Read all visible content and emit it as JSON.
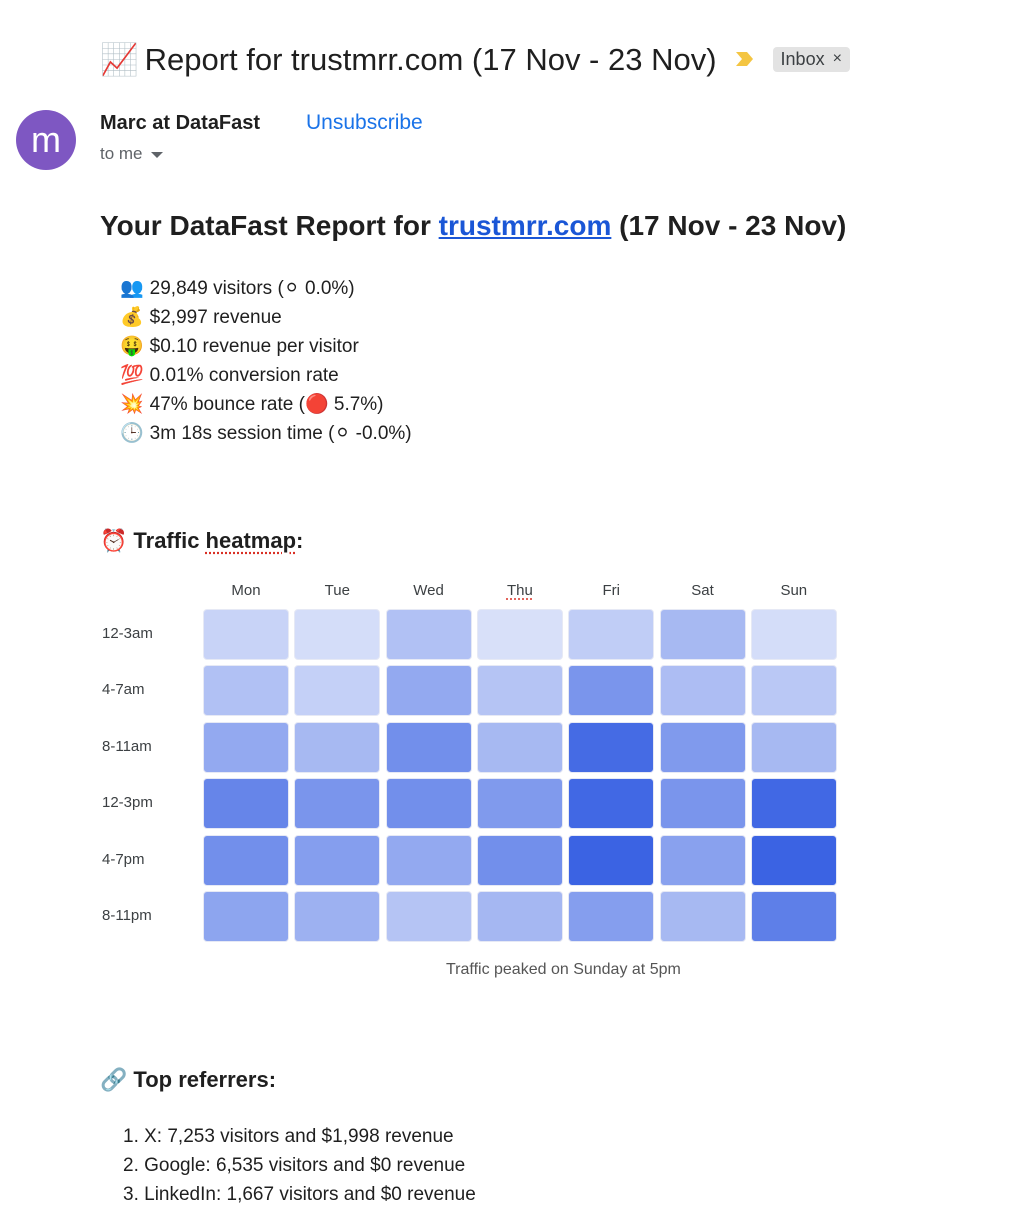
{
  "email": {
    "subject_emoji": "📈",
    "subject": "Report for trustmrr.com (17 Nov - 23 Nov)",
    "label": "Inbox",
    "label_close": "×",
    "sender_initial": "m",
    "sender_name": "Marc at DataFast",
    "unsubscribe": "Unsubscribe",
    "recipient": "to me"
  },
  "report": {
    "title_prefix": "Your DataFast Report for",
    "site_link": "trustmrr.com",
    "title_suffix": "(17 Nov - 23 Nov)",
    "stats": [
      {
        "emoji": "👥",
        "text": "29,849 visitors (⚪ 0.0%)"
      },
      {
        "emoji": "💰",
        "text": "$2,997 revenue"
      },
      {
        "emoji": "🤑",
        "text": "$0.10 revenue per visitor"
      },
      {
        "emoji": "💯",
        "text": "0.01% conversion rate"
      },
      {
        "emoji": "💥",
        "text": "47% bounce rate (🔴 5.7%)"
      },
      {
        "emoji": "🕒",
        "text": "3m 18s session time (⚪ -0.0%)"
      }
    ]
  },
  "heatmap": {
    "title_emoji": "⏰",
    "title_plain": "Traffic ",
    "title_spell": "heatmap",
    "title_colon": ":",
    "days": [
      "Mon",
      "Tue",
      "Wed",
      "Thu",
      "Fri",
      "Sat",
      "Sun"
    ],
    "slots": [
      "12-3am",
      "4-7am",
      "8-11am",
      "12-3pm",
      "4-7pm",
      "8-11pm"
    ],
    "base_color": "#3b63e3",
    "intensity": [
      [
        0.28,
        0.22,
        0.4,
        0.2,
        0.32,
        0.45,
        0.22
      ],
      [
        0.4,
        0.3,
        0.55,
        0.38,
        0.68,
        0.42,
        0.35
      ],
      [
        0.55,
        0.45,
        0.72,
        0.45,
        0.95,
        0.65,
        0.45
      ],
      [
        0.78,
        0.68,
        0.72,
        0.65,
        0.97,
        0.68,
        0.97
      ],
      [
        0.72,
        0.62,
        0.55,
        0.72,
        1.0,
        0.6,
        1.0
      ],
      [
        0.58,
        0.5,
        0.38,
        0.46,
        0.62,
        0.45,
        0.82
      ]
    ],
    "caption": "Traffic peaked on Sunday at 5pm"
  },
  "referrers": {
    "title_emoji": "🔗",
    "title": "Top referrers:",
    "items": [
      "1. X: 7,253 visitors and $1,998 revenue",
      "2. Google: 6,535 visitors and $0 revenue",
      "3. LinkedIn: 1,667 visitors and $0 revenue"
    ]
  }
}
